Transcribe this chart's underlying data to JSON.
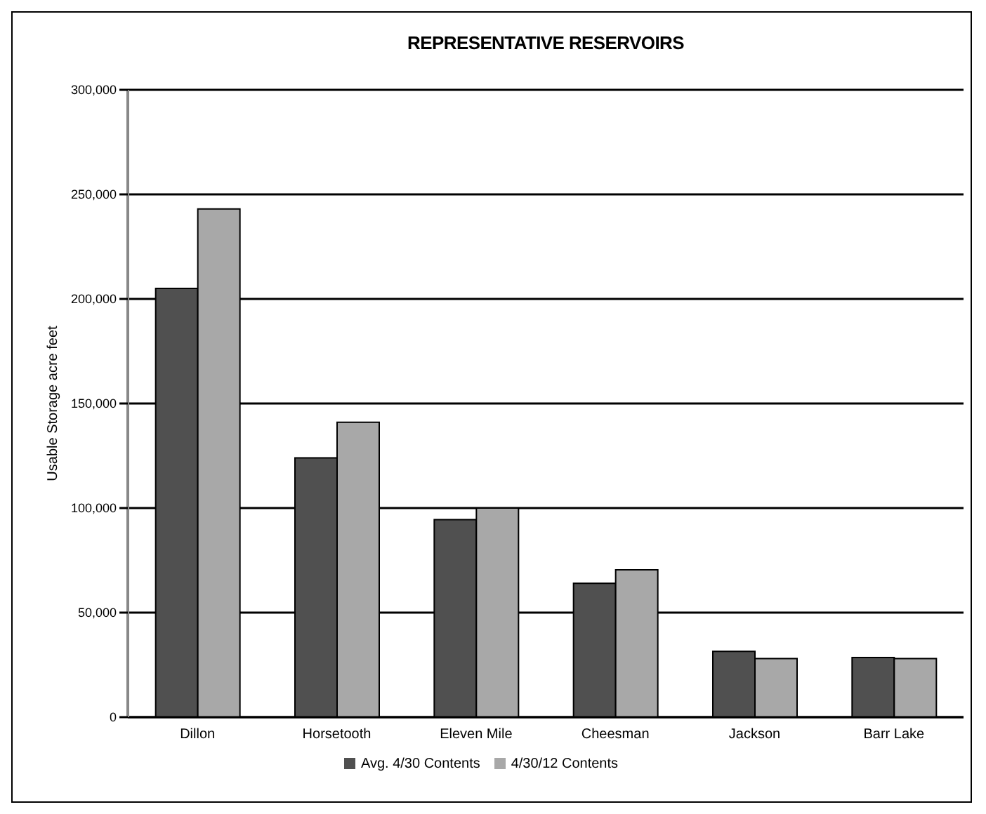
{
  "chart_data": {
    "type": "bar",
    "title": "REPRESENTATIVE RESERVOIRS",
    "ylabel": "Usable Storage acre feet",
    "categories": [
      "Dillon",
      "Horsetooth",
      "Eleven Mile",
      "Cheesman",
      "Jackson",
      "Barr Lake"
    ],
    "series": [
      {
        "name": "Avg. 4/30 Contents",
        "color": "#505050",
        "values": [
          205000,
          124000,
          94500,
          64000,
          31500,
          28500
        ]
      },
      {
        "name": "4/30/12 Contents",
        "color": "#a8a8a8",
        "values": [
          243000,
          141000,
          100000,
          70500,
          28000,
          28000
        ]
      }
    ],
    "ylim": [
      0,
      300000
    ],
    "yticks": [
      0,
      {
        "value": 50000,
        "label": "50,000"
      },
      {
        "value": 100000,
        "label": "100,000"
      },
      {
        "value": 150000,
        "label": "150,000"
      },
      {
        "value": 200000,
        "label": "200,000"
      },
      {
        "value": 250000,
        "label": "250,000"
      },
      {
        "value": 300000,
        "label": "300,000"
      }
    ],
    "grid": "y",
    "legend": "bottom"
  }
}
